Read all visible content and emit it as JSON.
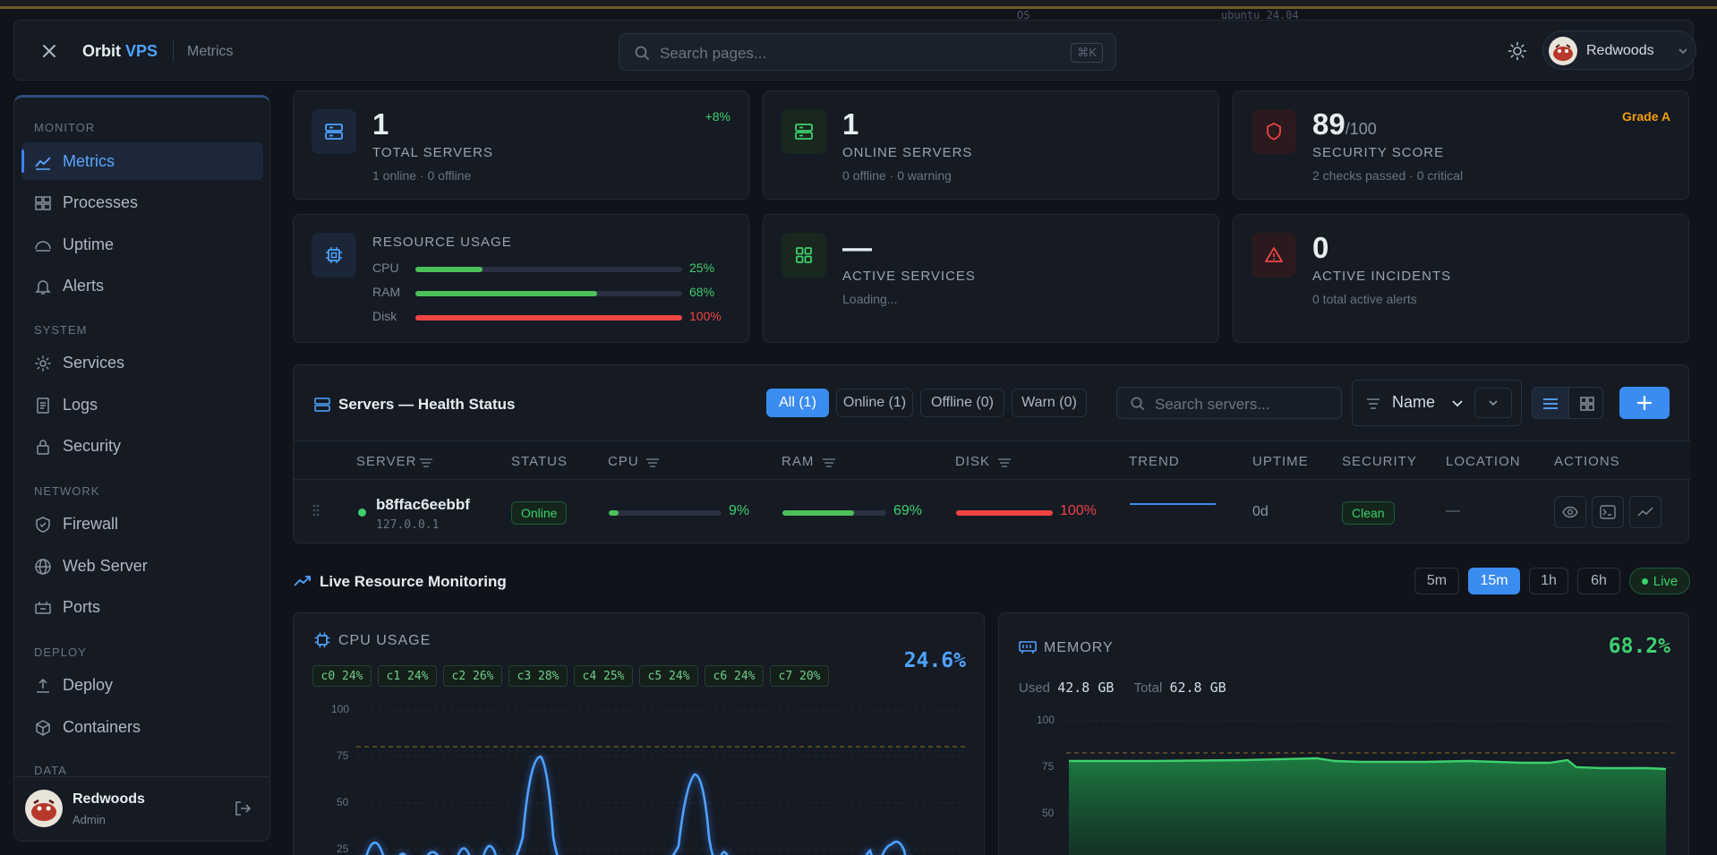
{
  "topstrip": {
    "os_label": "OS",
    "os_value": "ubuntu 24.04"
  },
  "header": {
    "brand_main": "Orbit",
    "brand_accent": "VPS",
    "breadcrumb": "Metrics",
    "search_placeholder": "Search pages...",
    "search_shortcut": "⌘K",
    "user_name": "Redwoods"
  },
  "sidebar": {
    "sections": [
      {
        "title": "MONITOR",
        "items": [
          "Metrics",
          "Processes",
          "Uptime",
          "Alerts"
        ]
      },
      {
        "title": "SYSTEM",
        "items": [
          "Services",
          "Logs",
          "Security"
        ]
      },
      {
        "title": "NETWORK",
        "items": [
          "Firewall",
          "Web Server",
          "Ports"
        ]
      },
      {
        "title": "DEPLOY",
        "items": [
          "Deploy",
          "Containers"
        ]
      },
      {
        "title": "DATA",
        "items": []
      }
    ],
    "active_item": "Metrics",
    "footer": {
      "name": "Redwoods",
      "role": "Admin"
    }
  },
  "cards": {
    "total_servers": {
      "value": "1",
      "label": "TOTAL SERVERS",
      "sub": "1 online · 0 offline",
      "badge": "+8%"
    },
    "online_servers": {
      "value": "1",
      "label": "ONLINE SERVERS",
      "sub": "0 offline · 0 warning"
    },
    "security_score": {
      "value": "89",
      "suffix": "/100",
      "label": "SECURITY SCORE",
      "sub": "2 checks passed · 0 critical",
      "badge": "Grade A"
    },
    "resource_usage": {
      "label": "RESOURCE USAGE",
      "rows": [
        {
          "name": "CPU",
          "value": "25%",
          "fraction": 0.25,
          "color": "#4cc15a"
        },
        {
          "name": "RAM",
          "value": "68%",
          "fraction": 0.68,
          "color": "#4cc15a"
        },
        {
          "name": "Disk",
          "value": "100%",
          "fraction": 1.0,
          "color": "#ef4444"
        }
      ]
    },
    "active_services": {
      "value": "—",
      "label": "ACTIVE SERVICES",
      "sub": "Loading..."
    },
    "active_incidents": {
      "value": "0",
      "label": "ACTIVE INCIDENTS",
      "sub": "0 total active alerts"
    }
  },
  "servers": {
    "title": "Servers — Health Status",
    "filters": [
      "All (1)",
      "Online (1)",
      "Offline (0)",
      "Warn (0)"
    ],
    "search_placeholder": "Search servers...",
    "sort_label": "Name",
    "columns": [
      "SERVER",
      "STATUS",
      "CPU",
      "RAM",
      "DISK",
      "TREND",
      "UPTIME",
      "SECURITY",
      "LOCATION",
      "ACTIONS"
    ],
    "rows": [
      {
        "name": "b8ffac6eebbf",
        "ip": "127.0.0.1",
        "status": "Online",
        "cpu": "9%",
        "cpu_fraction": 0.09,
        "ram": "69%",
        "ram_fraction": 0.69,
        "disk": "100%",
        "disk_fraction": 1.0,
        "uptime": "0d",
        "security": "Clean",
        "location": "—"
      }
    ]
  },
  "live": {
    "title": "Live Resource Monitoring",
    "ranges": [
      "5m",
      "15m",
      "1h",
      "6h"
    ],
    "active_range": "15m",
    "live_label": "Live",
    "cpu": {
      "title": "CPU USAGE",
      "value": "24.6%",
      "cores": [
        "c0 24%",
        "c1 24%",
        "c2 26%",
        "c3 28%",
        "c4 25%",
        "c5 24%",
        "c6 24%",
        "c7 20%"
      ],
      "y_ticks": [
        "100",
        "75",
        "50",
        "25"
      ]
    },
    "memory": {
      "title": "MEMORY",
      "value": "68.2%",
      "used_label": "Used",
      "used_value": "42.8 GB",
      "total_label": "Total",
      "total_value": "62.8 GB",
      "y_ticks": [
        "100",
        "75",
        "50"
      ]
    }
  },
  "colors": {
    "accent": "#3b8cf0",
    "green": "#3ecf6e",
    "red": "#ef4444",
    "orange": "#f59e0b"
  }
}
